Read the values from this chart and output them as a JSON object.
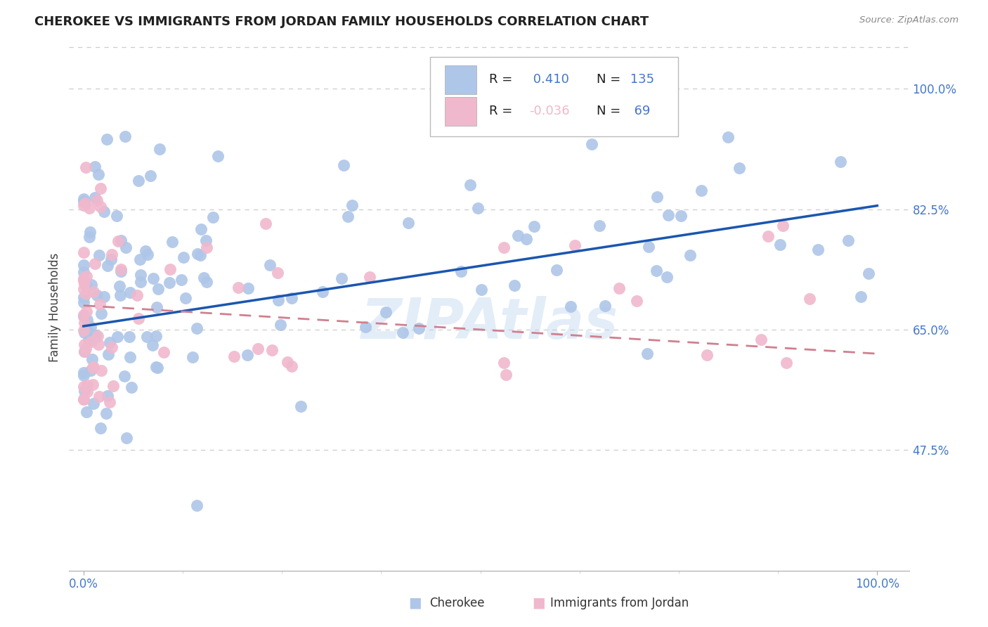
{
  "title": "CHEROKEE VS IMMIGRANTS FROM JORDAN FAMILY HOUSEHOLDS CORRELATION CHART",
  "source": "Source: ZipAtlas.com",
  "ylabel": "Family Households",
  "watermark": "ZIPAtlas",
  "blue_color": "#aec6e8",
  "pink_color": "#f0b8cc",
  "trend_blue": "#1a56b0",
  "trend_pink": "#d08090",
  "tick_label_color": "#4477cc",
  "y_ticks": [
    0.475,
    0.65,
    0.825,
    1.0
  ],
  "y_tick_labels": [
    "47.5%",
    "65.0%",
    "82.5%",
    "100.0%"
  ],
  "x_tick_labels": [
    "0.0%",
    "100.0%"
  ],
  "legend_r1": "R =  0.410",
  "legend_n1": "N = 135",
  "legend_r2": "R = -0.036",
  "legend_n2": "N =  69",
  "cherokee_r": 0.41,
  "cherokee_n": 135,
  "jordan_r": -0.036,
  "jordan_n": 69,
  "bottom_legend": [
    "Cherokee",
    "Immigrants from Jordan"
  ]
}
